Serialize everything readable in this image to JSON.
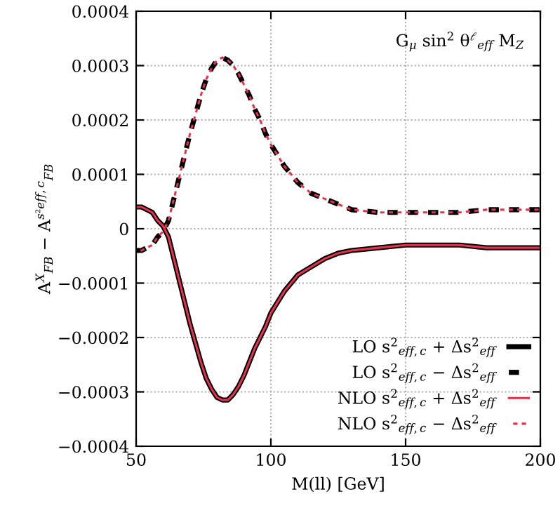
{
  "chart_data": {
    "type": "line",
    "xlabel": "M(ll) [GeV]",
    "ylabel": "A$^{X}$$_{FB}$ − A$^{s²eff,c}$$_{FB}$",
    "annotations": [
      "G$_{μ}$ sin$^{2}$ θ$^{ℓ}$$_{eff}$ M$_{Z}$"
    ],
    "x": [
      50,
      52,
      54,
      56,
      58,
      60,
      62,
      64,
      66,
      68,
      70,
      72,
      74,
      76,
      78,
      80,
      82,
      84,
      86,
      88,
      90,
      92,
      94,
      96,
      98,
      100,
      105,
      110,
      115,
      120,
      125,
      130,
      140,
      150,
      160,
      170,
      180,
      190,
      200
    ],
    "series": [
      {
        "name": "LO s$^{2}$$_{eff,c}$ + Δs$^{2}$$_{eff}$",
        "color": "#000000",
        "line_style": "solid",
        "values": [
          4e-05,
          4e-05,
          3.5e-05,
          3e-05,
          1.5e-05,
          5e-06,
          -1.5e-05,
          -5.5e-05,
          -9.5e-05,
          -0.000135,
          -0.000175,
          -0.00021,
          -0.000245,
          -0.000275,
          -0.000295,
          -0.00031,
          -0.000315,
          -0.000315,
          -0.000305,
          -0.00029,
          -0.00027,
          -0.000245,
          -0.00022,
          -0.0002,
          -0.00018,
          -0.000155,
          -0.000115,
          -8.5e-05,
          -7e-05,
          -5.5e-05,
          -4.5e-05,
          -4e-05,
          -3.5e-05,
          -3e-05,
          -3e-05,
          -3e-05,
          -3.5e-05,
          -3.5e-05,
          -3.5e-05
        ]
      },
      {
        "name": "LO s$^{2}$$_{eff,c}$ − Δs$^{2}$$_{eff}$",
        "color": "#000000",
        "line_style": "dashed",
        "values": [
          -4e-05,
          -4e-05,
          -3.5e-05,
          -3e-05,
          -1.5e-05,
          -5e-06,
          1.5e-05,
          5.5e-05,
          9.5e-05,
          0.000135,
          0.000175,
          0.00021,
          0.000245,
          0.000275,
          0.000295,
          0.00031,
          0.000315,
          0.00031,
          0.0003,
          0.000285,
          0.000265,
          0.000245,
          0.00022,
          0.0002,
          0.000175,
          0.000155,
          0.000115,
          8.5e-05,
          6.5e-05,
          5.5e-05,
          4.5e-05,
          3.5e-05,
          3e-05,
          3e-05,
          3e-05,
          3e-05,
          3.5e-05,
          3.5e-05,
          3.5e-05
        ]
      },
      {
        "name": "NLO s$^{2}$$_{eff,c}$ + Δs$^{2}$$_{eff}$",
        "color": "#e8314f",
        "line_style": "solid",
        "values": [
          4e-05,
          4e-05,
          3.5e-05,
          3e-05,
          1.5e-05,
          5e-06,
          -1.5e-05,
          -5.5e-05,
          -9.5e-05,
          -0.000135,
          -0.000175,
          -0.00021,
          -0.000245,
          -0.000275,
          -0.000295,
          -0.00031,
          -0.000315,
          -0.000315,
          -0.000305,
          -0.00029,
          -0.00027,
          -0.000245,
          -0.00022,
          -0.0002,
          -0.00018,
          -0.000155,
          -0.000115,
          -8.5e-05,
          -7e-05,
          -5.5e-05,
          -4.5e-05,
          -4e-05,
          -3.5e-05,
          -3e-05,
          -3e-05,
          -3e-05,
          -3.5e-05,
          -3.5e-05,
          -3.5e-05
        ]
      },
      {
        "name": "NLO s$^{2}$$_{eff,c}$ − Δs$^{2}$$_{eff}$",
        "color": "#e8314f",
        "line_style": "dashed",
        "values": [
          -4e-05,
          -4e-05,
          -3.5e-05,
          -3e-05,
          -1.5e-05,
          -5e-06,
          1.5e-05,
          5.5e-05,
          9.5e-05,
          0.000135,
          0.000175,
          0.00021,
          0.000245,
          0.000275,
          0.000295,
          0.00031,
          0.000315,
          0.00031,
          0.0003,
          0.000285,
          0.000265,
          0.000245,
          0.00022,
          0.0002,
          0.000175,
          0.000155,
          0.000115,
          8.5e-05,
          6.5e-05,
          5.5e-05,
          4.5e-05,
          3.5e-05,
          3e-05,
          3e-05,
          3e-05,
          3e-05,
          3.5e-05,
          3.5e-05,
          3.5e-05
        ]
      }
    ],
    "xlim": [
      50,
      200
    ],
    "xticks": [
      50,
      100,
      150,
      200
    ],
    "ylim": [
      -0.0004,
      0.0004
    ],
    "yticks": [
      -0.0004,
      -0.0003,
      -0.0002,
      -0.0001,
      0,
      0.0001,
      0.0002,
      0.0003,
      0.0004
    ],
    "grid": true,
    "legend": "bottom right",
    "marker": "none"
  }
}
